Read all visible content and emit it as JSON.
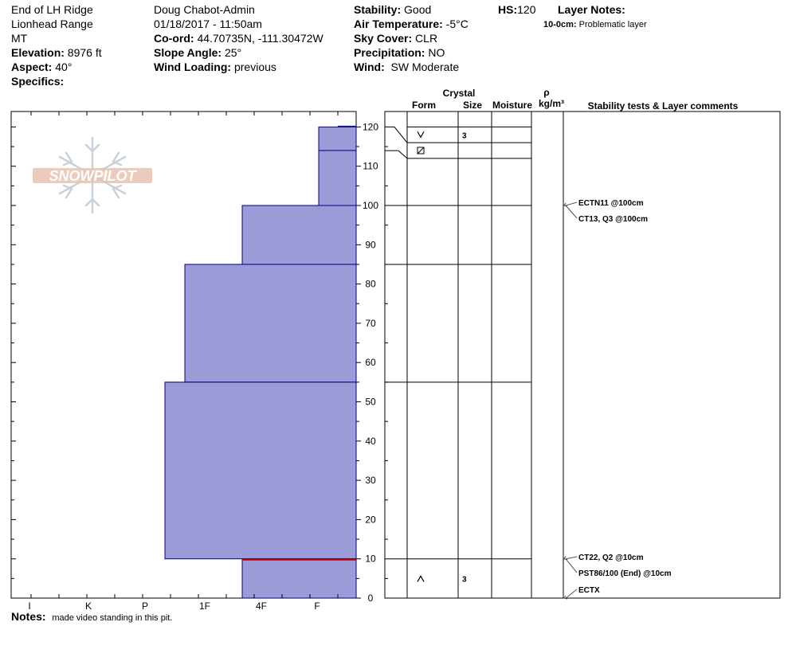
{
  "header": {
    "location": "End of LH Ridge",
    "range": "Lionhead Range",
    "state": "MT",
    "elevation_label": "Elevation:",
    "elevation_value": "8976 ft",
    "aspect_label": "Aspect:",
    "aspect_value": "40°",
    "specifics_label": "Specifics:",
    "observer": "Doug Chabot-Admin",
    "datetime": "01/18/2017 - 11:50am",
    "coord_label": "Co-ord:",
    "coord_value": "44.70735N, -111.30472W",
    "slope_label": "Slope Angle:",
    "slope_value": "25°",
    "wind_loading_label": "Wind Loading:",
    "wind_loading_value": "previous",
    "stability_label": "Stability:",
    "stability_value": "Good",
    "air_temp_label": "Air Temperature:",
    "air_temp_value": "-5°C",
    "sky_label": "Sky Cover:",
    "sky_value": "CLR",
    "precip_label": "Precipitation:",
    "precip_value": "NO",
    "wind_label": "Wind:",
    "wind_value": "SW Moderate",
    "hs_label": "HS:",
    "hs_value": "120",
    "layer_notes_label": "Layer Notes:",
    "layer_note_depth": "10-0cm:",
    "layer_note_text": "Problematic layer"
  },
  "logo_text": "SNOWPILOT",
  "notes_label": "Notes:",
  "notes_text": "made video standing in this pit.",
  "colors": {
    "layer_fill": "#9b9bd7",
    "layer_stroke": "#000080",
    "weak_layer": "#cc0000",
    "logo": "#e8c3b0",
    "logo_flake": "#c8d2dc"
  },
  "chart_data": {
    "type": "snow-profile",
    "hardness_scale": [
      "I",
      "K",
      "P",
      "1F",
      "4F",
      "F"
    ],
    "height_ticks": [
      0,
      10,
      20,
      30,
      40,
      50,
      60,
      70,
      80,
      90,
      100,
      110,
      120
    ],
    "ylim": [
      0,
      120
    ],
    "column_headers": {
      "crystal": "Crystal",
      "form": "Form",
      "size": "Size",
      "moisture": "Moisture",
      "rho": "ρ",
      "density": "kg/m³",
      "stability": "Stability tests & Layer comments"
    },
    "hardness_layers": [
      {
        "top": 120,
        "bottom": 114,
        "hardness": "F"
      },
      {
        "top": 114,
        "bottom": 100,
        "hardness": "F"
      },
      {
        "top": 100,
        "bottom": 85,
        "hardness": "4F"
      },
      {
        "top": 85,
        "bottom": 55,
        "hardness": "1F"
      },
      {
        "top": 55,
        "bottom": 10,
        "hardness": "1F"
      },
      {
        "top": 10,
        "bottom": 0,
        "hardness": "4F"
      }
    ],
    "weak_layer_height": 10,
    "strat_boundaries": [
      120,
      116,
      112,
      100,
      85,
      55,
      10
    ],
    "crystals": [
      {
        "top": 120,
        "bottom": 116,
        "form": "surface hoar",
        "size": "3"
      },
      {
        "top": 116,
        "bottom": 112,
        "form": "faceted rounded",
        "size": ""
      },
      {
        "top": 10,
        "bottom": 0,
        "form": "depth hoar",
        "size": "3"
      }
    ],
    "stability_tests": [
      {
        "text": "ECTN11 @100cm",
        "height": 100
      },
      {
        "text": "CT13, Q3 @100cm",
        "height": 100
      },
      {
        "text": "CT22, Q2 @10cm",
        "height": 10
      },
      {
        "text": "PST86/100 (End) @10cm",
        "height": 10
      },
      {
        "text": "ECTX",
        "height": 0
      }
    ]
  }
}
